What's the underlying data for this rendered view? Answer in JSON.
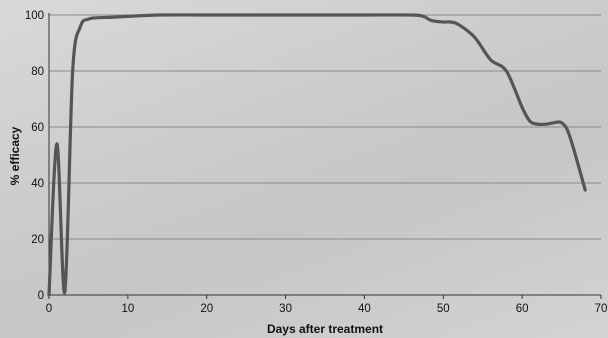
{
  "chart_data": {
    "type": "line",
    "title": "",
    "xlabel": "Days after treatment",
    "ylabel": "% efficacy",
    "xlim": [
      0,
      70
    ],
    "ylim": [
      0,
      100
    ],
    "xticks": [
      0,
      10,
      20,
      30,
      40,
      50,
      60,
      70
    ],
    "yticks": [
      0,
      20,
      40,
      60,
      80,
      100
    ],
    "grid": "horizontal",
    "line_color": "#555555",
    "grid_color": "#8a8a8a",
    "series": [
      {
        "x": [
          0,
          1,
          2,
          3,
          4,
          5,
          6,
          8,
          10,
          14,
          20,
          30,
          40,
          46,
          47.5,
          48.5,
          50,
          51,
          52,
          54,
          56,
          58,
          60,
          61,
          62,
          63,
          64,
          65,
          66,
          68
        ],
        "y": [
          0,
          54,
          1,
          80,
          96,
          98.5,
          99,
          99.2,
          99.5,
          100,
          100,
          100,
          100,
          100,
          99.5,
          98,
          97.5,
          97.5,
          96.5,
          92,
          84,
          80,
          67,
          62,
          61,
          61,
          61.5,
          61.5,
          57,
          37.5
        ]
      }
    ]
  }
}
